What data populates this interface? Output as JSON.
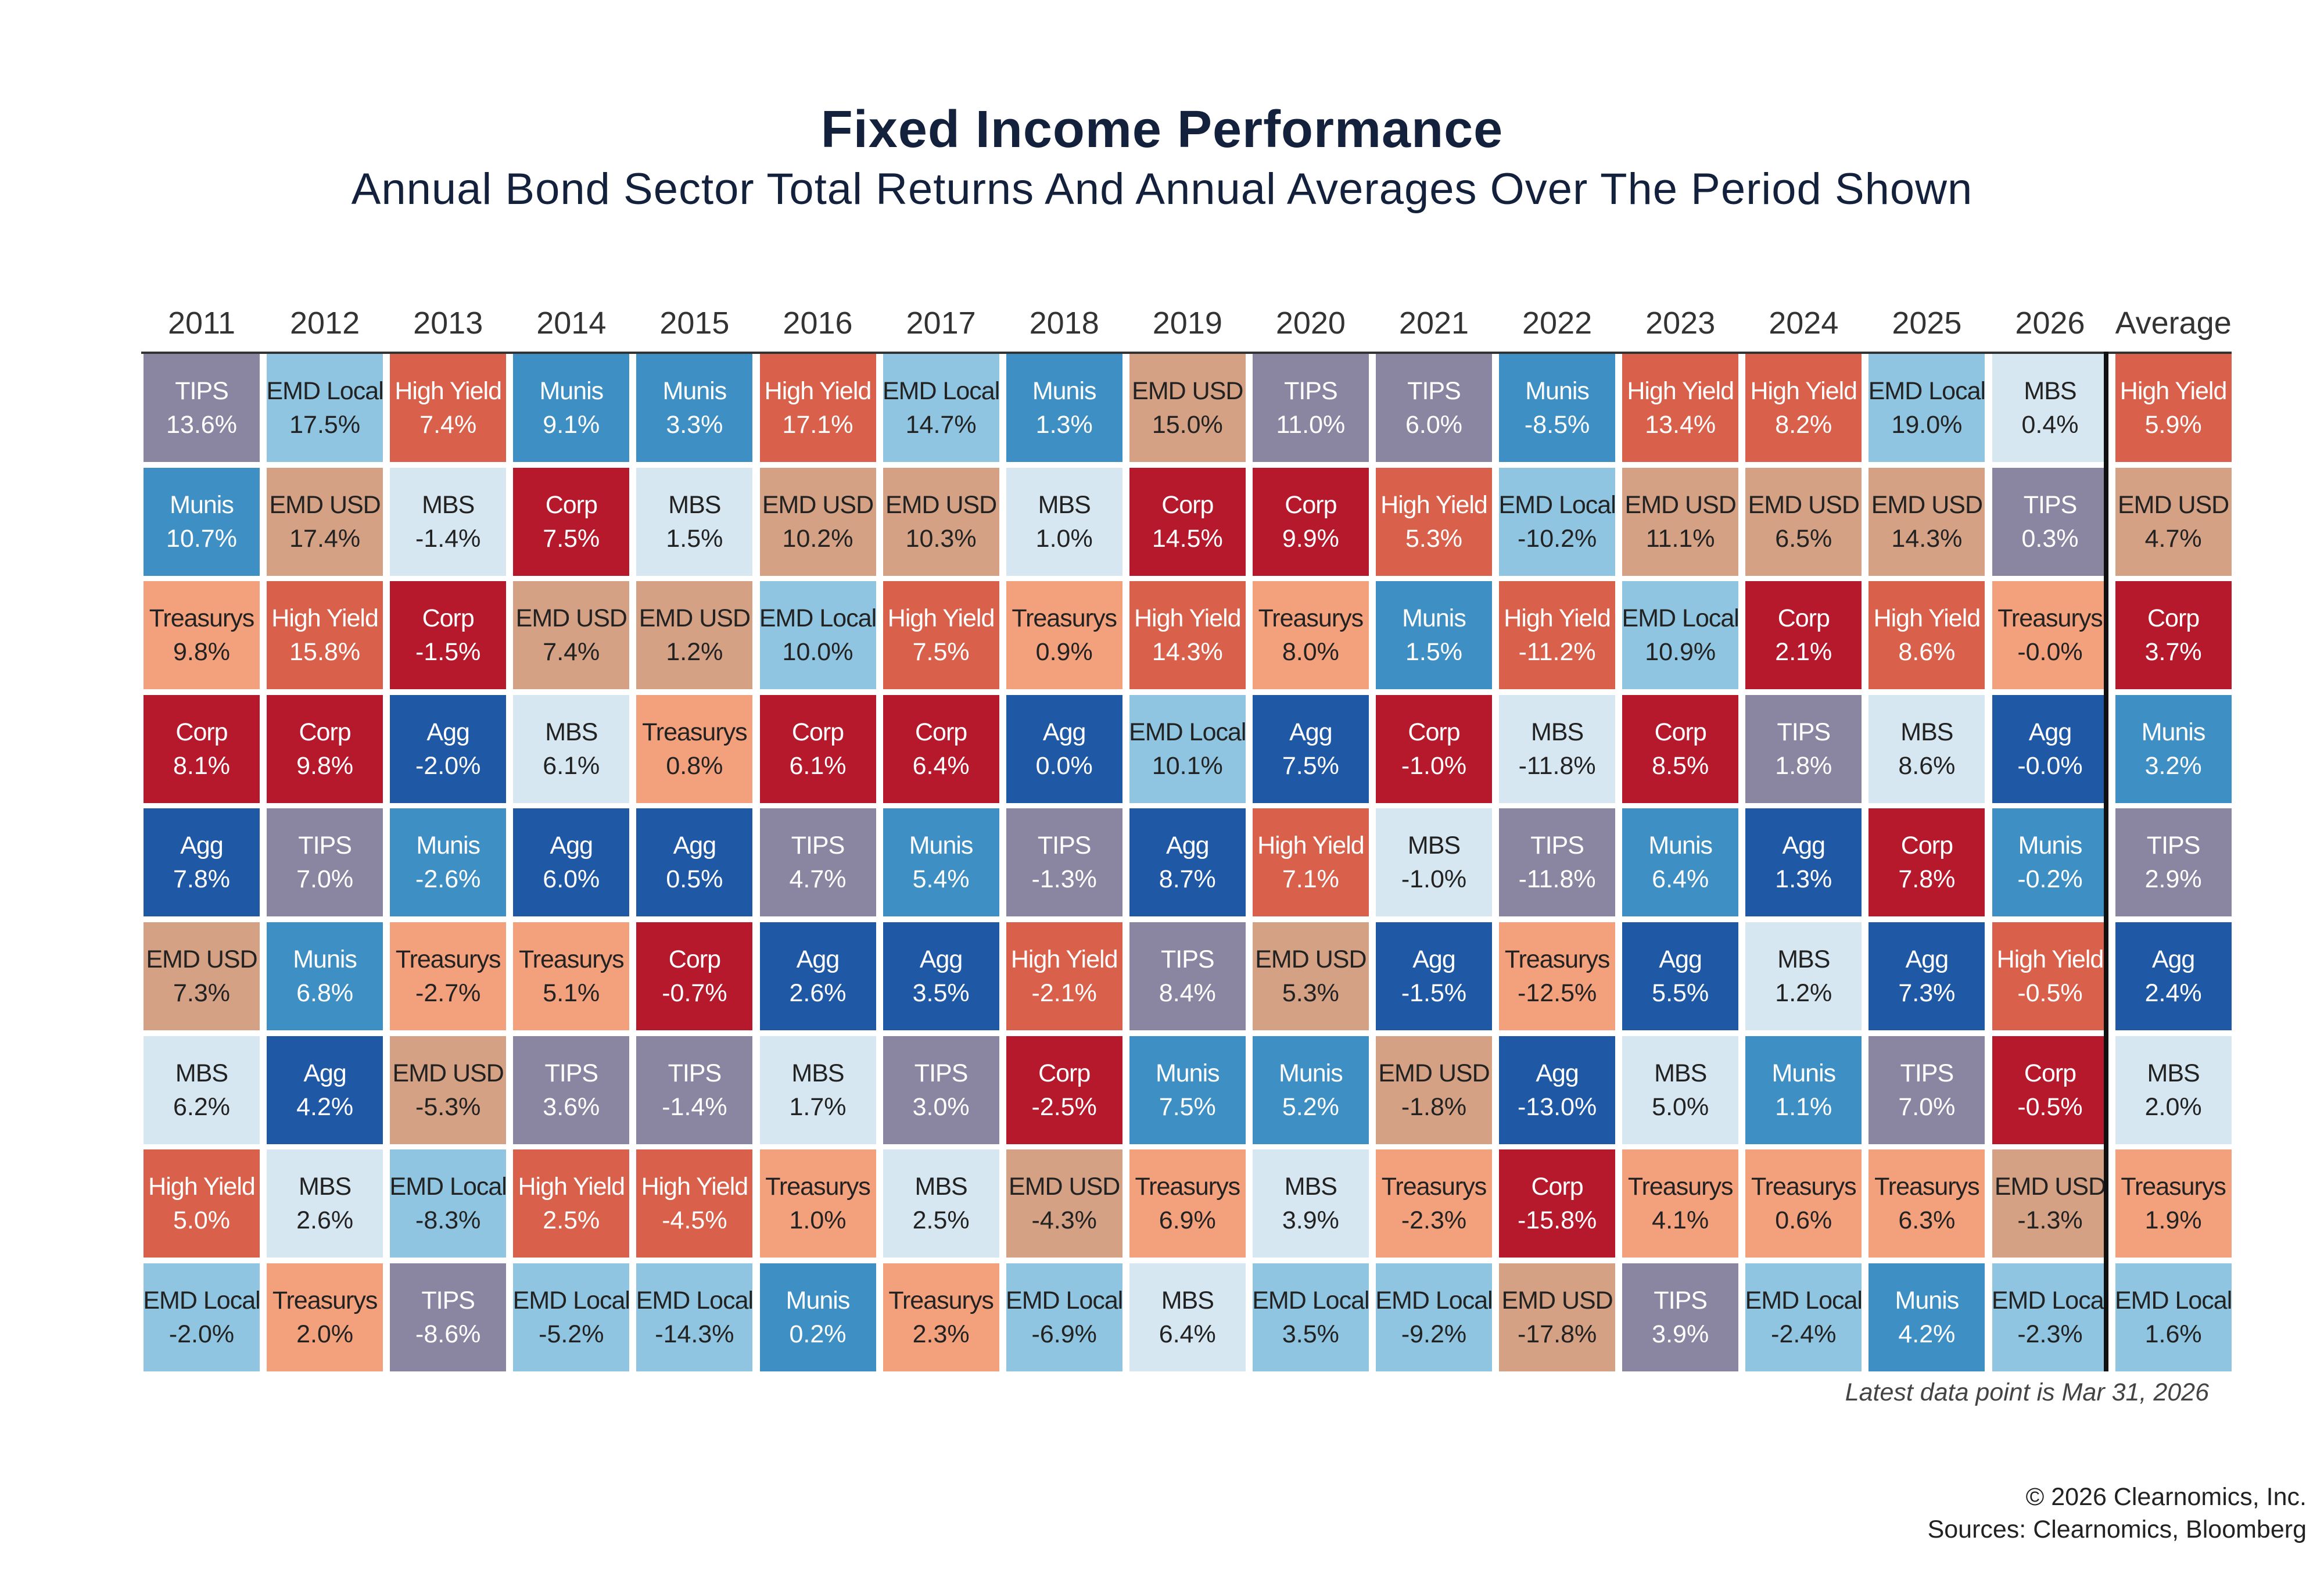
{
  "title": "Fixed Income Performance",
  "subtitle": "Annual Bond Sector Total Returns And Annual Averages Over The Period Shown",
  "note": "Latest data point is Mar 31, 2026",
  "footer": {
    "copyright": "© 2026 Clearnomics, Inc.",
    "sources": "Sources: Clearnomics, Bloomberg"
  },
  "colors": {
    "TIPS": "#8a86a2",
    "EMD Local": "#8fc5e0",
    "High Yield": "#d9604a",
    "Munis": "#3e8fc4",
    "EMD USD": "#d4a184",
    "MBS": "#d6e7f1",
    "Corp": "#b6192c",
    "Treasurys": "#f3a17d",
    "Agg": "#1f59a6"
  },
  "text_colors": {
    "TIPS": "light",
    "EMD Local": "dark",
    "High Yield": "light",
    "Munis": "light",
    "EMD USD": "dark",
    "MBS": "dark",
    "Corp": "light",
    "Treasurys": "dark",
    "Agg": "light"
  },
  "chart_data": {
    "type": "table",
    "title": "Fixed Income Performance",
    "subtitle": "Annual Bond Sector Total Returns And Annual Averages Over The Period Shown",
    "columns": [
      {
        "header": "2011",
        "cells": [
          {
            "sector": "TIPS",
            "value": "13.6%"
          },
          {
            "sector": "Munis",
            "value": "10.7%"
          },
          {
            "sector": "Treasurys",
            "value": "9.8%"
          },
          {
            "sector": "Corp",
            "value": "8.1%"
          },
          {
            "sector": "Agg",
            "value": "7.8%"
          },
          {
            "sector": "EMD USD",
            "value": "7.3%"
          },
          {
            "sector": "MBS",
            "value": "6.2%"
          },
          {
            "sector": "High Yield",
            "value": "5.0%"
          },
          {
            "sector": "EMD Local",
            "value": "-2.0%"
          }
        ]
      },
      {
        "header": "2012",
        "cells": [
          {
            "sector": "EMD Local",
            "value": "17.5%"
          },
          {
            "sector": "EMD USD",
            "value": "17.4%"
          },
          {
            "sector": "High Yield",
            "value": "15.8%"
          },
          {
            "sector": "Corp",
            "value": "9.8%"
          },
          {
            "sector": "TIPS",
            "value": "7.0%"
          },
          {
            "sector": "Munis",
            "value": "6.8%"
          },
          {
            "sector": "Agg",
            "value": "4.2%"
          },
          {
            "sector": "MBS",
            "value": "2.6%"
          },
          {
            "sector": "Treasurys",
            "value": "2.0%"
          }
        ]
      },
      {
        "header": "2013",
        "cells": [
          {
            "sector": "High Yield",
            "value": "7.4%"
          },
          {
            "sector": "MBS",
            "value": "-1.4%"
          },
          {
            "sector": "Corp",
            "value": "-1.5%"
          },
          {
            "sector": "Agg",
            "value": "-2.0%"
          },
          {
            "sector": "Munis",
            "value": "-2.6%"
          },
          {
            "sector": "Treasurys",
            "value": "-2.7%"
          },
          {
            "sector": "EMD USD",
            "value": "-5.3%"
          },
          {
            "sector": "EMD Local",
            "value": "-8.3%"
          },
          {
            "sector": "TIPS",
            "value": "-8.6%"
          }
        ]
      },
      {
        "header": "2014",
        "cells": [
          {
            "sector": "Munis",
            "value": "9.1%"
          },
          {
            "sector": "Corp",
            "value": "7.5%"
          },
          {
            "sector": "EMD USD",
            "value": "7.4%"
          },
          {
            "sector": "MBS",
            "value": "6.1%"
          },
          {
            "sector": "Agg",
            "value": "6.0%"
          },
          {
            "sector": "Treasurys",
            "value": "5.1%"
          },
          {
            "sector": "TIPS",
            "value": "3.6%"
          },
          {
            "sector": "High Yield",
            "value": "2.5%"
          },
          {
            "sector": "EMD Local",
            "value": "-5.2%"
          }
        ]
      },
      {
        "header": "2015",
        "cells": [
          {
            "sector": "Munis",
            "value": "3.3%"
          },
          {
            "sector": "MBS",
            "value": "1.5%"
          },
          {
            "sector": "EMD USD",
            "value": "1.2%"
          },
          {
            "sector": "Treasurys",
            "value": "0.8%"
          },
          {
            "sector": "Agg",
            "value": "0.5%"
          },
          {
            "sector": "Corp",
            "value": "-0.7%"
          },
          {
            "sector": "TIPS",
            "value": "-1.4%"
          },
          {
            "sector": "High Yield",
            "value": "-4.5%"
          },
          {
            "sector": "EMD Local",
            "value": "-14.3%"
          }
        ]
      },
      {
        "header": "2016",
        "cells": [
          {
            "sector": "High Yield",
            "value": "17.1%"
          },
          {
            "sector": "EMD USD",
            "value": "10.2%"
          },
          {
            "sector": "EMD Local",
            "value": "10.0%"
          },
          {
            "sector": "Corp",
            "value": "6.1%"
          },
          {
            "sector": "TIPS",
            "value": "4.7%"
          },
          {
            "sector": "Agg",
            "value": "2.6%"
          },
          {
            "sector": "MBS",
            "value": "1.7%"
          },
          {
            "sector": "Treasurys",
            "value": "1.0%"
          },
          {
            "sector": "Munis",
            "value": "0.2%"
          }
        ]
      },
      {
        "header": "2017",
        "cells": [
          {
            "sector": "EMD Local",
            "value": "14.7%"
          },
          {
            "sector": "EMD USD",
            "value": "10.3%"
          },
          {
            "sector": "High Yield",
            "value": "7.5%"
          },
          {
            "sector": "Corp",
            "value": "6.4%"
          },
          {
            "sector": "Munis",
            "value": "5.4%"
          },
          {
            "sector": "Agg",
            "value": "3.5%"
          },
          {
            "sector": "TIPS",
            "value": "3.0%"
          },
          {
            "sector": "MBS",
            "value": "2.5%"
          },
          {
            "sector": "Treasurys",
            "value": "2.3%"
          }
        ]
      },
      {
        "header": "2018",
        "cells": [
          {
            "sector": "Munis",
            "value": "1.3%"
          },
          {
            "sector": "MBS",
            "value": "1.0%"
          },
          {
            "sector": "Treasurys",
            "value": "0.9%"
          },
          {
            "sector": "Agg",
            "value": "0.0%"
          },
          {
            "sector": "TIPS",
            "value": "-1.3%"
          },
          {
            "sector": "High Yield",
            "value": "-2.1%"
          },
          {
            "sector": "Corp",
            "value": "-2.5%"
          },
          {
            "sector": "EMD USD",
            "value": "-4.3%"
          },
          {
            "sector": "EMD Local",
            "value": "-6.9%"
          }
        ]
      },
      {
        "header": "2019",
        "cells": [
          {
            "sector": "EMD USD",
            "value": "15.0%"
          },
          {
            "sector": "Corp",
            "value": "14.5%"
          },
          {
            "sector": "High Yield",
            "value": "14.3%"
          },
          {
            "sector": "EMD Local",
            "value": "10.1%"
          },
          {
            "sector": "Agg",
            "value": "8.7%"
          },
          {
            "sector": "TIPS",
            "value": "8.4%"
          },
          {
            "sector": "Munis",
            "value": "7.5%"
          },
          {
            "sector": "Treasurys",
            "value": "6.9%"
          },
          {
            "sector": "MBS",
            "value": "6.4%"
          }
        ]
      },
      {
        "header": "2020",
        "cells": [
          {
            "sector": "TIPS",
            "value": "11.0%"
          },
          {
            "sector": "Corp",
            "value": "9.9%"
          },
          {
            "sector": "Treasurys",
            "value": "8.0%"
          },
          {
            "sector": "Agg",
            "value": "7.5%"
          },
          {
            "sector": "High Yield",
            "value": "7.1%"
          },
          {
            "sector": "EMD USD",
            "value": "5.3%"
          },
          {
            "sector": "Munis",
            "value": "5.2%"
          },
          {
            "sector": "MBS",
            "value": "3.9%"
          },
          {
            "sector": "EMD Local",
            "value": "3.5%"
          }
        ]
      },
      {
        "header": "2021",
        "cells": [
          {
            "sector": "TIPS",
            "value": "6.0%"
          },
          {
            "sector": "High Yield",
            "value": "5.3%"
          },
          {
            "sector": "Munis",
            "value": "1.5%"
          },
          {
            "sector": "Corp",
            "value": "-1.0%"
          },
          {
            "sector": "MBS",
            "value": "-1.0%"
          },
          {
            "sector": "Agg",
            "value": "-1.5%"
          },
          {
            "sector": "EMD USD",
            "value": "-1.8%"
          },
          {
            "sector": "Treasurys",
            "value": "-2.3%"
          },
          {
            "sector": "EMD Local",
            "value": "-9.2%"
          }
        ]
      },
      {
        "header": "2022",
        "cells": [
          {
            "sector": "Munis",
            "value": "-8.5%"
          },
          {
            "sector": "EMD Local",
            "value": "-10.2%"
          },
          {
            "sector": "High Yield",
            "value": "-11.2%"
          },
          {
            "sector": "MBS",
            "value": "-11.8%"
          },
          {
            "sector": "TIPS",
            "value": "-11.8%"
          },
          {
            "sector": "Treasurys",
            "value": "-12.5%"
          },
          {
            "sector": "Agg",
            "value": "-13.0%"
          },
          {
            "sector": "Corp",
            "value": "-15.8%"
          },
          {
            "sector": "EMD USD",
            "value": "-17.8%"
          }
        ]
      },
      {
        "header": "2023",
        "cells": [
          {
            "sector": "High Yield",
            "value": "13.4%"
          },
          {
            "sector": "EMD USD",
            "value": "11.1%"
          },
          {
            "sector": "EMD Local",
            "value": "10.9%"
          },
          {
            "sector": "Corp",
            "value": "8.5%"
          },
          {
            "sector": "Munis",
            "value": "6.4%"
          },
          {
            "sector": "Agg",
            "value": "5.5%"
          },
          {
            "sector": "MBS",
            "value": "5.0%"
          },
          {
            "sector": "Treasurys",
            "value": "4.1%"
          },
          {
            "sector": "TIPS",
            "value": "3.9%"
          }
        ]
      },
      {
        "header": "2024",
        "cells": [
          {
            "sector": "High Yield",
            "value": "8.2%"
          },
          {
            "sector": "EMD USD",
            "value": "6.5%"
          },
          {
            "sector": "Corp",
            "value": "2.1%"
          },
          {
            "sector": "TIPS",
            "value": "1.8%"
          },
          {
            "sector": "Agg",
            "value": "1.3%"
          },
          {
            "sector": "MBS",
            "value": "1.2%"
          },
          {
            "sector": "Munis",
            "value": "1.1%"
          },
          {
            "sector": "Treasurys",
            "value": "0.6%"
          },
          {
            "sector": "EMD Local",
            "value": "-2.4%"
          }
        ]
      },
      {
        "header": "2025",
        "cells": [
          {
            "sector": "EMD Local",
            "value": "19.0%"
          },
          {
            "sector": "EMD USD",
            "value": "14.3%"
          },
          {
            "sector": "High Yield",
            "value": "8.6%"
          },
          {
            "sector": "MBS",
            "value": "8.6%"
          },
          {
            "sector": "Corp",
            "value": "7.8%"
          },
          {
            "sector": "Agg",
            "value": "7.3%"
          },
          {
            "sector": "TIPS",
            "value": "7.0%"
          },
          {
            "sector": "Treasurys",
            "value": "6.3%"
          },
          {
            "sector": "Munis",
            "value": "4.2%"
          }
        ]
      },
      {
        "header": "2026",
        "cells": [
          {
            "sector": "MBS",
            "value": "0.4%"
          },
          {
            "sector": "TIPS",
            "value": "0.3%"
          },
          {
            "sector": "Treasurys",
            "value": "-0.0%"
          },
          {
            "sector": "Agg",
            "value": "-0.0%"
          },
          {
            "sector": "Munis",
            "value": "-0.2%"
          },
          {
            "sector": "High Yield",
            "value": "-0.5%"
          },
          {
            "sector": "Corp",
            "value": "-0.5%"
          },
          {
            "sector": "EMD USD",
            "value": "-1.3%"
          },
          {
            "sector": "EMD Local",
            "value": "-2.3%"
          }
        ]
      },
      {
        "header": "Average",
        "cells": [
          {
            "sector": "High Yield",
            "value": "5.9%"
          },
          {
            "sector": "EMD USD",
            "value": "4.7%"
          },
          {
            "sector": "Corp",
            "value": "3.7%"
          },
          {
            "sector": "Munis",
            "value": "3.2%"
          },
          {
            "sector": "TIPS",
            "value": "2.9%"
          },
          {
            "sector": "Agg",
            "value": "2.4%"
          },
          {
            "sector": "MBS",
            "value": "2.0%"
          },
          {
            "sector": "Treasurys",
            "value": "1.9%"
          },
          {
            "sector": "EMD Local",
            "value": "1.6%"
          }
        ]
      }
    ]
  }
}
